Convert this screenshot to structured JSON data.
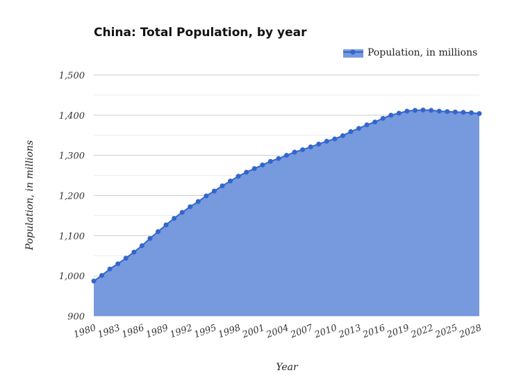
{
  "chart_data": {
    "type": "area",
    "title": "China: Total Population, by year",
    "xlabel": "Year",
    "ylabel": "Population, in millions",
    "ylim": [
      900,
      1500
    ],
    "yticks": [
      "900",
      "1,000",
      "1,100",
      "1,200",
      "1,300",
      "1,400",
      "1,500"
    ],
    "xticks": [
      "1980",
      "1983",
      "1986",
      "1989",
      "1992",
      "1995",
      "1998",
      "2001",
      "2004",
      "2007",
      "2010",
      "2013",
      "2016",
      "2019",
      "2022",
      "2025",
      "2028"
    ],
    "grid": true,
    "legend_position": "top-right",
    "series": [
      {
        "name": "Population, in millions",
        "color": "#3366cc",
        "fill": "#7799dd",
        "x": [
          1980,
          1981,
          1982,
          1983,
          1984,
          1985,
          1986,
          1987,
          1988,
          1989,
          1990,
          1991,
          1992,
          1993,
          1994,
          1995,
          1996,
          1997,
          1998,
          1999,
          2000,
          2001,
          2002,
          2003,
          2004,
          2005,
          2006,
          2007,
          2008,
          2009,
          2010,
          2011,
          2012,
          2013,
          2014,
          2015,
          2016,
          2017,
          2018,
          2019,
          2020,
          2021,
          2022,
          2023,
          2024,
          2025,
          2026,
          2027,
          2028
        ],
        "values": [
          987,
          1001,
          1017,
          1030,
          1044,
          1059,
          1075,
          1093,
          1110,
          1127,
          1143,
          1158,
          1172,
          1185,
          1199,
          1211,
          1224,
          1236,
          1248,
          1258,
          1267,
          1276,
          1285,
          1292,
          1300,
          1308,
          1314,
          1321,
          1328,
          1335,
          1341,
          1349,
          1359,
          1367,
          1376,
          1383,
          1392,
          1400,
          1405,
          1410,
          1412,
          1413,
          1412,
          1410,
          1409,
          1408,
          1407,
          1406,
          1404
        ]
      }
    ]
  }
}
